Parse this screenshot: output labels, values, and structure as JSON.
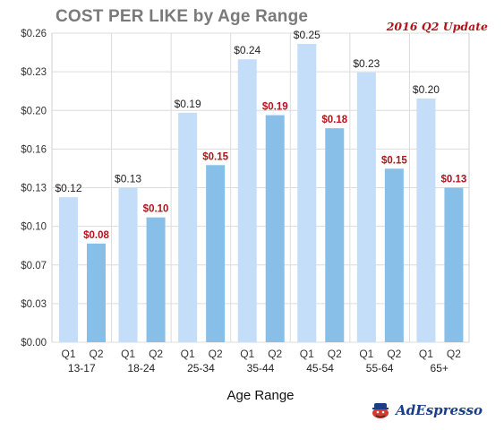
{
  "chart_data": {
    "type": "bar",
    "title": "COST PER LIKE by Age Range",
    "subtitle": "2016 Q2 Update",
    "xlabel": "Age Range",
    "ylabel": "",
    "ylim": [
      0,
      0.26
    ],
    "yticks": [
      "$0.00",
      "$0.03",
      "$0.07",
      "$0.10",
      "$0.13",
      "$0.16",
      "$0.20",
      "$0.23",
      "$0.26"
    ],
    "categories": [
      "13-17",
      "18-24",
      "25-34",
      "35-44",
      "45-54",
      "55-64",
      "65+"
    ],
    "series": [
      {
        "name": "Q1",
        "values": [
          0.122,
          0.13,
          0.193,
          0.238,
          0.251,
          0.227,
          0.205
        ],
        "labels": [
          "$0.12",
          "$0.13",
          "$0.19",
          "$0.24",
          "$0.25",
          "$0.23",
          "$0.20"
        ],
        "color": "#c4defa",
        "label_color": "#222222"
      },
      {
        "name": "Q2",
        "values": [
          0.083,
          0.105,
          0.149,
          0.191,
          0.18,
          0.146,
          0.13
        ],
        "labels": [
          "$0.08",
          "$0.10",
          "$0.15",
          "$0.19",
          "$0.18",
          "$0.15",
          "$0.13"
        ],
        "color": "#88bfe8",
        "label_color": "#b5121b"
      }
    ],
    "grid": true,
    "legend": "none"
  },
  "logo": {
    "text": "AdEspresso"
  }
}
